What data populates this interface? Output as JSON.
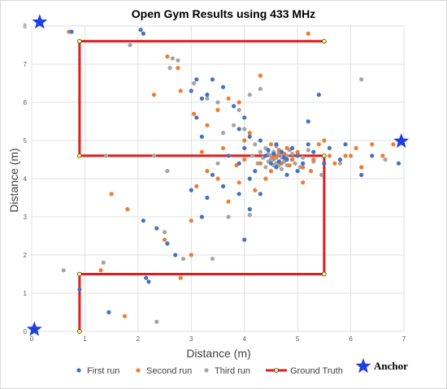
{
  "chart_data": {
    "type": "scatter",
    "title": "Open Gym Results using 433 MHz",
    "xlabel": "Distance (m)",
    "ylabel": "Distance (m)",
    "xlim": [
      0,
      7
    ],
    "ylim": [
      0,
      8
    ],
    "xticks": [
      "0",
      "1",
      "2",
      "3",
      "4",
      "5",
      "6",
      "7"
    ],
    "yticks": [
      "0",
      "1",
      "2",
      "3",
      "4",
      "5",
      "6",
      "7",
      "8"
    ],
    "grid": true,
    "legend_position": "bottom",
    "colors": {
      "first_run": "#4472C4",
      "second_run": "#ED7D31",
      "third_run": "#A5A5A5",
      "ground_truth": "#E41A1C",
      "ground_truth_marker": "#FFFF66",
      "anchor": "#1F3FE0"
    },
    "series": [
      {
        "name": "First run",
        "points": [
          [
            2.05,
            7.9
          ],
          [
            2.1,
            7.8
          ],
          [
            0.75,
            7.85
          ],
          [
            0.9,
            1.1
          ],
          [
            1.45,
            0.5
          ],
          [
            2.2,
            1.3
          ],
          [
            2.15,
            1.4
          ],
          [
            2.35,
            2.7
          ],
          [
            2.55,
            2.3
          ],
          [
            2.7,
            2.0
          ],
          [
            2.1,
            2.9
          ],
          [
            3.0,
            3.7
          ],
          [
            3.2,
            3.0
          ],
          [
            3.3,
            3.5
          ],
          [
            3.6,
            3.8
          ],
          [
            3.9,
            3.6
          ],
          [
            4.1,
            3.2
          ],
          [
            4.3,
            3.6
          ],
          [
            4.0,
            2.4
          ],
          [
            3.4,
            4.1
          ],
          [
            3.2,
            5.1
          ],
          [
            3.1,
            5.6
          ],
          [
            3.2,
            6.1
          ],
          [
            3.3,
            6.2
          ],
          [
            3.1,
            6.6
          ],
          [
            3.4,
            6.6
          ],
          [
            3.6,
            6.4
          ],
          [
            3.0,
            6.3
          ],
          [
            3.8,
            5.9
          ],
          [
            3.9,
            5.3
          ],
          [
            4.1,
            5.1
          ],
          [
            4.0,
            4.8
          ],
          [
            4.3,
            5.0
          ],
          [
            4.4,
            4.6
          ],
          [
            4.5,
            4.4
          ],
          [
            4.6,
            4.3
          ],
          [
            4.7,
            4.7
          ],
          [
            4.8,
            4.5
          ],
          [
            4.9,
            4.8
          ],
          [
            5.0,
            4.6
          ],
          [
            5.1,
            4.4
          ],
          [
            5.2,
            4.9
          ],
          [
            5.3,
            4.7
          ],
          [
            5.4,
            6.2
          ],
          [
            5.2,
            5.5
          ],
          [
            5.6,
            4.8
          ],
          [
            5.8,
            4.5
          ],
          [
            5.9,
            4.9
          ],
          [
            6.2,
            4.1
          ],
          [
            6.4,
            4.6
          ],
          [
            6.9,
            4.4
          ],
          [
            5.5,
            4.4
          ],
          [
            4.2,
            4.2
          ],
          [
            4.1,
            4.0
          ],
          [
            3.9,
            4.4
          ],
          [
            4.6,
            4.9
          ],
          [
            4.75,
            4.55
          ],
          [
            4.55,
            4.65
          ],
          [
            4.65,
            4.45
          ],
          [
            4.45,
            4.75
          ],
          [
            3.7,
            4.6
          ],
          [
            5.0,
            4.2
          ],
          [
            4.8,
            4.1
          ],
          [
            4.0,
            5.6
          ]
        ]
      },
      {
        "name": "Second run",
        "points": [
          [
            0.7,
            7.85
          ],
          [
            5.2,
            7.8
          ],
          [
            1.3,
            1.6
          ],
          [
            1.75,
            0.4
          ],
          [
            2.5,
            2.4
          ],
          [
            2.8,
            1.4
          ],
          [
            3.0,
            2.0
          ],
          [
            3.0,
            2.9
          ],
          [
            1.5,
            3.6
          ],
          [
            1.8,
            3.2
          ],
          [
            3.3,
            4.2
          ],
          [
            3.1,
            3.8
          ],
          [
            3.5,
            4.0
          ],
          [
            3.7,
            3.4
          ],
          [
            3.9,
            3.9
          ],
          [
            4.2,
            3.7
          ],
          [
            4.3,
            4.4
          ],
          [
            4.0,
            4.5
          ],
          [
            2.3,
            6.2
          ],
          [
            2.8,
            6.3
          ],
          [
            2.75,
            6.9
          ],
          [
            2.55,
            7.2
          ],
          [
            3.05,
            5.7
          ],
          [
            3.3,
            5.4
          ],
          [
            3.5,
            5.8
          ],
          [
            3.7,
            6.1
          ],
          [
            3.9,
            6.0
          ],
          [
            4.3,
            6.7
          ],
          [
            4.1,
            5.2
          ],
          [
            4.0,
            5.0
          ],
          [
            4.5,
            4.9
          ],
          [
            4.6,
            4.6
          ],
          [
            4.7,
            4.4
          ],
          [
            4.8,
            4.8
          ],
          [
            4.9,
            4.5
          ],
          [
            5.0,
            4.7
          ],
          [
            5.1,
            4.3
          ],
          [
            5.3,
            4.5
          ],
          [
            5.4,
            4.9
          ],
          [
            5.6,
            4.6
          ],
          [
            5.7,
            4.4
          ],
          [
            5.9,
            4.6
          ],
          [
            6.0,
            4.6
          ],
          [
            6.1,
            4.8
          ],
          [
            6.2,
            4.3
          ],
          [
            6.4,
            4.9
          ],
          [
            6.6,
            4.6
          ],
          [
            6.8,
            4.9
          ],
          [
            5.1,
            3.9
          ],
          [
            4.5,
            4.2
          ],
          [
            4.4,
            4.0
          ],
          [
            3.6,
            4.8
          ],
          [
            3.2,
            4.7
          ],
          [
            4.75,
            4.65
          ],
          [
            4.55,
            4.55
          ],
          [
            4.65,
            4.75
          ],
          [
            4.85,
            4.35
          ],
          [
            5.5,
            5.0
          ],
          [
            5.25,
            4.2
          ],
          [
            3.85,
            4.35
          ]
        ]
      },
      {
        "name": "Third run",
        "points": [
          [
            1.85,
            7.5
          ],
          [
            0.6,
            1.6
          ],
          [
            1.35,
            1.8
          ],
          [
            2.35,
            0.25
          ],
          [
            2.85,
            1.9
          ],
          [
            3.4,
            1.9
          ],
          [
            2.5,
            2.6
          ],
          [
            1.4,
            4.6
          ],
          [
            2.3,
            4.6
          ],
          [
            2.55,
            4.2
          ],
          [
            2.6,
            6.9
          ],
          [
            2.65,
            7.15
          ],
          [
            2.75,
            7.1
          ],
          [
            3.05,
            6.5
          ],
          [
            3.3,
            6.1
          ],
          [
            3.5,
            6.0
          ],
          [
            3.9,
            5.8
          ],
          [
            4.1,
            6.2
          ],
          [
            4.3,
            6.35
          ],
          [
            6.2,
            6.6
          ],
          [
            3.6,
            5.2
          ],
          [
            3.8,
            5.4
          ],
          [
            4.0,
            5.3
          ],
          [
            4.2,
            4.9
          ],
          [
            4.3,
            4.7
          ],
          [
            4.4,
            4.8
          ],
          [
            4.5,
            4.6
          ],
          [
            4.55,
            4.5
          ],
          [
            4.6,
            4.4
          ],
          [
            4.65,
            4.7
          ],
          [
            4.7,
            4.55
          ],
          [
            4.75,
            4.45
          ],
          [
            4.8,
            4.6
          ],
          [
            4.85,
            4.75
          ],
          [
            4.9,
            4.5
          ],
          [
            4.95,
            4.4
          ],
          [
            5.0,
            4.65
          ],
          [
            5.1,
            4.55
          ],
          [
            5.2,
            4.75
          ],
          [
            5.3,
            4.45
          ],
          [
            4.4,
            4.3
          ],
          [
            4.35,
            4.55
          ],
          [
            4.45,
            4.65
          ],
          [
            4.55,
            4.35
          ],
          [
            4.6,
            4.85
          ],
          [
            4.7,
            4.25
          ],
          [
            4.8,
            4.35
          ],
          [
            4.9,
            4.65
          ],
          [
            5.05,
            4.3
          ],
          [
            4.25,
            4.4
          ],
          [
            4.15,
            4.6
          ],
          [
            3.5,
            4.4
          ],
          [
            3.7,
            3.0
          ],
          [
            4.1,
            3.05
          ],
          [
            5.45,
            4.1
          ],
          [
            5.8,
            4.4
          ],
          [
            6.65,
            4.5
          ],
          [
            4.65,
            4.65
          ],
          [
            4.5,
            4.5
          ],
          [
            4.6,
            4.55
          ],
          [
            4.7,
            4.65
          ],
          [
            4.55,
            4.7
          ],
          [
            4.65,
            4.35
          ],
          [
            4.45,
            4.45
          ]
        ]
      },
      {
        "name": "Ground Truth",
        "type": "line",
        "points": [
          [
            0.9,
            0
          ],
          [
            0.9,
            1.5
          ],
          [
            5.5,
            1.5
          ],
          [
            5.5,
            4.6
          ],
          [
            0.9,
            4.6
          ],
          [
            0.9,
            7.6
          ],
          [
            5.5,
            7.6
          ]
        ]
      }
    ],
    "anchors": {
      "label": "Anchor",
      "points": [
        [
          0.15,
          8.1
        ],
        [
          0.05,
          0.05
        ],
        [
          6.95,
          4.98
        ]
      ]
    }
  }
}
